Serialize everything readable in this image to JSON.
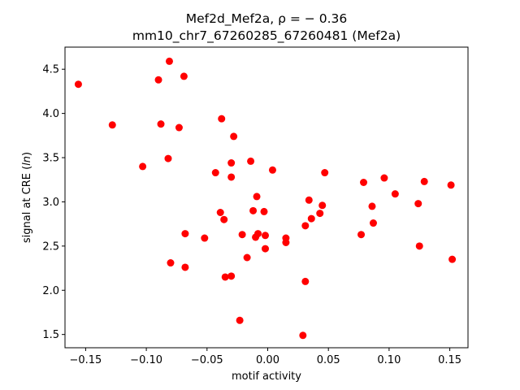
{
  "chart_data": {
    "type": "scatter",
    "title_line1": "Mef2d_Mef2a, ρ = − 0.36",
    "title_line2": "mm10_chr7_67260285_67260481 (Mef2a)",
    "xlabel": "motif activity",
    "ylabel": "signal at CRE (ln)",
    "xlim": [
      -0.167,
      0.165
    ],
    "ylim": [
      1.35,
      4.75
    ],
    "xticks": [
      -0.15,
      -0.1,
      -0.05,
      0.0,
      0.05,
      0.1,
      0.15
    ],
    "xtick_labels": [
      "−0.15",
      "−0.10",
      "−0.05",
      "0.00",
      "0.05",
      "0.10",
      "0.15"
    ],
    "yticks": [
      1.5,
      2.0,
      2.5,
      3.0,
      3.5,
      4.0,
      4.5
    ],
    "ytick_labels": [
      "1.5",
      "2.0",
      "2.5",
      "3.0",
      "3.5",
      "4.0",
      "4.5"
    ],
    "grid": false,
    "marker_color": "#ff0000",
    "points": [
      {
        "x": -0.156,
        "y": 4.33
      },
      {
        "x": -0.128,
        "y": 3.87
      },
      {
        "x": -0.103,
        "y": 3.4
      },
      {
        "x": -0.09,
        "y": 4.38
      },
      {
        "x": -0.088,
        "y": 3.88
      },
      {
        "x": -0.082,
        "y": 3.49
      },
      {
        "x": -0.081,
        "y": 4.59
      },
      {
        "x": -0.08,
        "y": 2.31
      },
      {
        "x": -0.073,
        "y": 3.84
      },
      {
        "x": -0.069,
        "y": 4.42
      },
      {
        "x": -0.068,
        "y": 2.64
      },
      {
        "x": -0.068,
        "y": 2.26
      },
      {
        "x": -0.052,
        "y": 2.59
      },
      {
        "x": -0.043,
        "y": 3.33
      },
      {
        "x": -0.039,
        "y": 2.88
      },
      {
        "x": -0.038,
        "y": 3.94
      },
      {
        "x": -0.036,
        "y": 2.8
      },
      {
        "x": -0.035,
        "y": 2.15
      },
      {
        "x": -0.03,
        "y": 3.28
      },
      {
        "x": -0.03,
        "y": 3.44
      },
      {
        "x": -0.03,
        "y": 2.16
      },
      {
        "x": -0.028,
        "y": 3.74
      },
      {
        "x": -0.023,
        "y": 1.66
      },
      {
        "x": -0.021,
        "y": 2.63
      },
      {
        "x": -0.017,
        "y": 2.37
      },
      {
        "x": -0.014,
        "y": 3.46
      },
      {
        "x": -0.012,
        "y": 2.9
      },
      {
        "x": -0.01,
        "y": 2.6
      },
      {
        "x": -0.009,
        "y": 3.06
      },
      {
        "x": -0.008,
        "y": 2.64
      },
      {
        "x": -0.003,
        "y": 2.89
      },
      {
        "x": -0.002,
        "y": 2.47
      },
      {
        "x": -0.002,
        "y": 2.62
      },
      {
        "x": 0.004,
        "y": 3.36
      },
      {
        "x": 0.015,
        "y": 2.59
      },
      {
        "x": 0.015,
        "y": 2.54
      },
      {
        "x": 0.029,
        "y": 1.49
      },
      {
        "x": 0.031,
        "y": 2.73
      },
      {
        "x": 0.031,
        "y": 2.1
      },
      {
        "x": 0.034,
        "y": 3.02
      },
      {
        "x": 0.036,
        "y": 2.81
      },
      {
        "x": 0.043,
        "y": 2.87
      },
      {
        "x": 0.045,
        "y": 2.96
      },
      {
        "x": 0.047,
        "y": 3.33
      },
      {
        "x": 0.077,
        "y": 2.63
      },
      {
        "x": 0.079,
        "y": 3.22
      },
      {
        "x": 0.086,
        "y": 2.95
      },
      {
        "x": 0.087,
        "y": 2.76
      },
      {
        "x": 0.096,
        "y": 3.27
      },
      {
        "x": 0.105,
        "y": 3.09
      },
      {
        "x": 0.124,
        "y": 2.98
      },
      {
        "x": 0.125,
        "y": 2.5
      },
      {
        "x": 0.129,
        "y": 3.23
      },
      {
        "x": 0.151,
        "y": 3.19
      },
      {
        "x": 0.152,
        "y": 2.35
      }
    ]
  }
}
